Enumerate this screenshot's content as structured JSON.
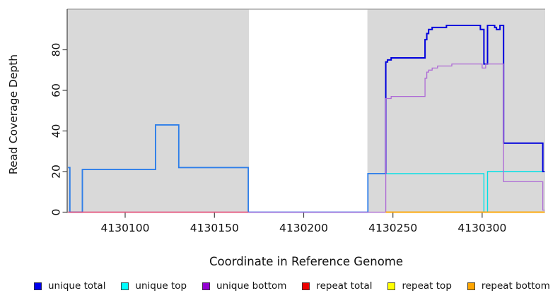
{
  "chart_data": {
    "type": "step-line",
    "title": "",
    "xlabel": "Coordinate in Reference Genome",
    "ylabel": "Read Coverage Depth",
    "xlim": [
      4130067.5,
      4130335.3
    ],
    "ylim": [
      0,
      100
    ],
    "x_ticks": [
      4130100,
      4130150,
      4130200,
      4130250,
      4130300
    ],
    "y_ticks": [
      0,
      20,
      40,
      60,
      80
    ],
    "grid": false,
    "legend_position": "bottom",
    "plot_background": "#FFFFFF",
    "axis_color": "#444444",
    "text_color": "#111111",
    "top_border_color": "#A8A8A8",
    "shaded_regions": [
      {
        "x_from": 4130067.5,
        "x_to": 4130169.3,
        "color": "#D9D9D9"
      },
      {
        "x_from": 4130235.7,
        "x_to": 4130335.3,
        "color": "#D9D9D9"
      }
    ],
    "series": [
      {
        "name": "unique top",
        "legend_color": "#00FFFF",
        "segments": [
          {
            "color": "#2E7EE9",
            "width": 1.6,
            "points": [
              [
                4130068,
                22
              ],
              [
                4130069,
                0
              ],
              [
                4130076,
                21
              ],
              [
                4130117,
                43
              ],
              [
                4130130,
                22
              ],
              [
                4130169,
                0
              ]
            ]
          },
          {
            "color": "#00E0E6",
            "width": 1.4,
            "points": [
              [
                4130246,
                19
              ],
              [
                4130301,
                0
              ],
              [
                4130303,
                20
              ],
              [
                4130335,
                20
              ]
            ]
          }
        ]
      },
      {
        "name": "unique total",
        "legend_color": "#0000EE",
        "segments": [
          {
            "color": "#2E7EE9",
            "width": 1.8,
            "points": [
              [
                4130068,
                22
              ],
              [
                4130069,
                0
              ],
              [
                4130076,
                21
              ],
              [
                4130117,
                43
              ],
              [
                4130130,
                22
              ],
              [
                4130169,
                0
              ],
              [
                4130236,
                19
              ],
              [
                4130246,
                19
              ]
            ]
          },
          {
            "color": "#0000DD",
            "width": 2,
            "points": [
              [
                4130246,
                19
              ],
              [
                4130246,
                74
              ],
              [
                4130247,
                75
              ],
              [
                4130249,
                76
              ],
              [
                4130268,
                85
              ],
              [
                4130269,
                88
              ],
              [
                4130270,
                90
              ],
              [
                4130272,
                91
              ],
              [
                4130280,
                92
              ],
              [
                4130299,
                90
              ],
              [
                4130301,
                73
              ],
              [
                4130303,
                92
              ],
              [
                4130307,
                91
              ],
              [
                4130308,
                90
              ],
              [
                4130310,
                92
              ],
              [
                4130312,
                34
              ],
              [
                4130334,
                20
              ],
              [
                4130335,
                20
              ]
            ]
          }
        ]
      },
      {
        "name": "unique bottom",
        "legend_color": "#9400D3",
        "segments": [
          {
            "color": "#AE6AD6",
            "width": 1.3,
            "points": [
              [
                4130068,
                0
              ],
              [
                4130246,
                56
              ],
              [
                4130249,
                57
              ],
              [
                4130268,
                66
              ],
              [
                4130269,
                69
              ],
              [
                4130270,
                70
              ],
              [
                4130272,
                71
              ],
              [
                4130275,
                72
              ],
              [
                4130283,
                73
              ],
              [
                4130300,
                71
              ],
              [
                4130302,
                73
              ],
              [
                4130312,
                15
              ],
              [
                4130334,
                1
              ],
              [
                4130335,
                1
              ]
            ]
          }
        ]
      },
      {
        "name": "repeat total",
        "legend_color": "#EE0000",
        "segments": [
          {
            "color": "#E8476F",
            "width": 1.4,
            "points": [
              [
                4130068,
                0
              ],
              [
                4130169,
                0
              ]
            ]
          },
          {
            "color": "#EE2222",
            "width": 1.4,
            "points": [
              [
                4130246,
                0
              ],
              [
                4130335,
                0
              ]
            ]
          }
        ]
      },
      {
        "name": "repeat top",
        "legend_color": "#FFFF00",
        "segments": [
          {
            "color": "#F2E300",
            "width": 1.4,
            "points": [
              [
                4130246,
                0
              ],
              [
                4130335,
                0
              ]
            ]
          }
        ]
      },
      {
        "name": "repeat bottom",
        "legend_color": "#FFA500",
        "segments": [
          {
            "color": "#FFA500",
            "width": 1.6,
            "points": [
              [
                4130246,
                0
              ],
              [
                4130335,
                0
              ]
            ]
          }
        ]
      }
    ],
    "legend": {
      "items": [
        {
          "label": "unique total",
          "color": "#0000EE"
        },
        {
          "label": "unique top",
          "color": "#00FFFF"
        },
        {
          "label": "unique bottom",
          "color": "#9400D3"
        },
        {
          "label": "repeat total",
          "color": "#EE0000"
        },
        {
          "label": "repeat top",
          "color": "#FFFF00"
        },
        {
          "label": "repeat bottom",
          "color": "#FFA500"
        }
      ]
    }
  }
}
